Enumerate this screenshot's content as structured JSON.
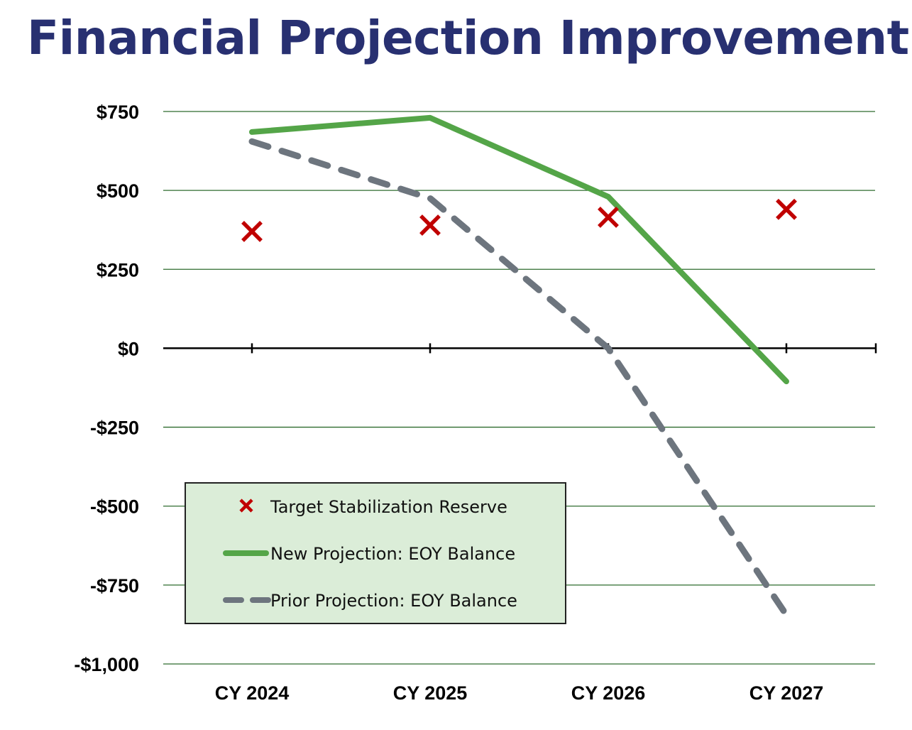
{
  "page": {
    "title": "Financial Projection Improvement"
  },
  "chart_data": {
    "type": "line",
    "categories": [
      "CY 2024",
      "CY 2025",
      "CY 2026",
      "CY 2027"
    ],
    "series": [
      {
        "name": "Target Stabilization Reserve",
        "style": "marker-x",
        "color": "#c00000",
        "values": [
          370,
          390,
          415,
          440
        ]
      },
      {
        "name": "New Projection: EOY Balance",
        "style": "solid",
        "color": "#54a548",
        "values": [
          685,
          730,
          480,
          -105
        ]
      },
      {
        "name": "Prior Projection: EOY Balance",
        "style": "dashed",
        "color": "#6d757e",
        "values": [
          655,
          475,
          0,
          -845
        ]
      }
    ],
    "y_ticks": [
      750,
      500,
      250,
      0,
      -250,
      -500,
      -750,
      -1000
    ],
    "y_tick_labels": [
      "$750",
      "$500",
      "$250",
      "$0",
      "-$250",
      "-$500",
      "-$750",
      "-$1,000"
    ],
    "ylim": [
      -1000,
      750
    ],
    "xlabel": "",
    "ylabel": "",
    "grid": true,
    "gridline_color": "#2e6b2e",
    "legend": {
      "placement": "bottom-left",
      "background": "#dbedd8"
    }
  }
}
